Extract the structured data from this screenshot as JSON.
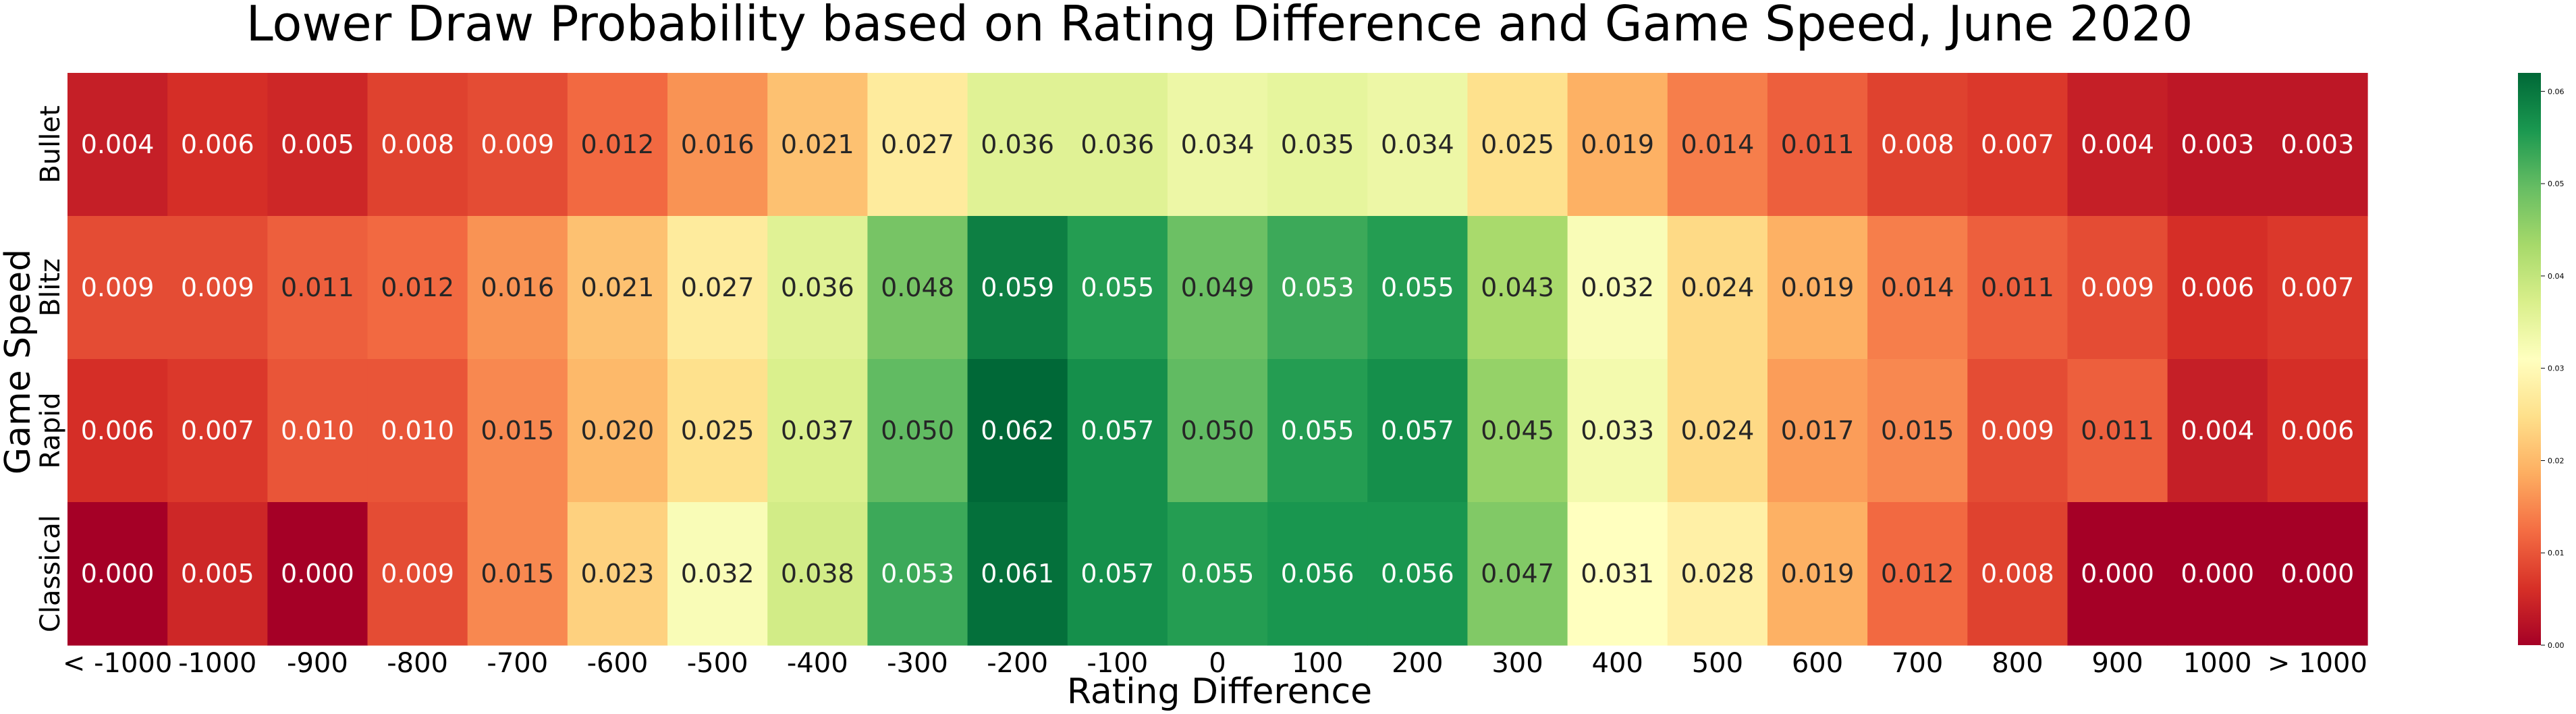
{
  "chart_data": {
    "type": "heatmap",
    "title": "Lower Draw Probability based on Rating Difference and Game Speed, June 2020",
    "xlabel": "Rating Difference",
    "ylabel": "Game Speed",
    "x_categories": [
      "< -1000",
      "-1000",
      "-900",
      "-800",
      "-700",
      "-600",
      "-500",
      "-400",
      "-300",
      "-200",
      "-100",
      "0",
      "100",
      "200",
      "300",
      "400",
      "500",
      "600",
      "700",
      "800",
      "900",
      "1000",
      "> 1000"
    ],
    "y_categories": [
      "Bullet",
      "Blitz",
      "Rapid",
      "Classical"
    ],
    "values": [
      [
        0.004,
        0.006,
        0.005,
        0.008,
        0.009,
        0.012,
        0.016,
        0.021,
        0.027,
        0.036,
        0.036,
        0.034,
        0.035,
        0.034,
        0.025,
        0.019,
        0.014,
        0.011,
        0.008,
        0.007,
        0.004,
        0.003,
        0.003
      ],
      [
        0.009,
        0.009,
        0.011,
        0.012,
        0.016,
        0.021,
        0.027,
        0.036,
        0.048,
        0.059,
        0.055,
        0.049,
        0.053,
        0.055,
        0.043,
        0.032,
        0.024,
        0.019,
        0.014,
        0.011,
        0.009,
        0.006,
        0.007
      ],
      [
        0.006,
        0.007,
        0.01,
        0.01,
        0.015,
        0.02,
        0.025,
        0.037,
        0.05,
        0.062,
        0.057,
        0.05,
        0.055,
        0.057,
        0.045,
        0.033,
        0.024,
        0.017,
        0.015,
        0.009,
        0.011,
        0.004,
        0.006
      ],
      [
        0.0,
        0.005,
        0.0,
        0.009,
        0.015,
        0.023,
        0.032,
        0.038,
        0.053,
        0.061,
        0.057,
        0.055,
        0.056,
        0.056,
        0.047,
        0.031,
        0.028,
        0.019,
        0.012,
        0.008,
        0.0,
        0.0,
        0.0
      ]
    ],
    "colormap": "RdYlGn",
    "vmin": 0.0,
    "vmax": 0.062,
    "colorbar_ticks": [
      "0.00",
      "0.01",
      "0.02",
      "0.03",
      "0.04",
      "0.05",
      "0.06"
    ]
  }
}
